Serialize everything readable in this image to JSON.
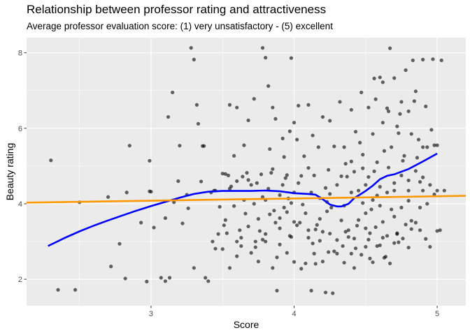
{
  "chart_data": {
    "type": "scatter",
    "title": "Relationship between professor rating and attractiveness",
    "subtitle": "Average professor evaluation score: (1) very unsatisfactory - (5) excellent",
    "xlabel": "Score",
    "ylabel": "Beauty rating",
    "xlim": [
      2.13,
      5.2
    ],
    "ylim": [
      1.3,
      8.4
    ],
    "x_ticks": [
      3,
      4,
      5
    ],
    "y_ticks": [
      2,
      4,
      6,
      8
    ],
    "grid": true,
    "colors": {
      "panel": "#ebebeb",
      "grid_major": "#ffffff",
      "points": "#000000",
      "smooth": "#0000ff",
      "linear_fit": "#ff9900"
    },
    "points": [
      [
        2.3,
        5.15
      ],
      [
        2.35,
        1.72
      ],
      [
        2.47,
        1.72
      ],
      [
        2.5,
        4.04
      ],
      [
        2.7,
        4.18
      ],
      [
        2.72,
        2.34
      ],
      [
        2.78,
        2.94
      ],
      [
        2.82,
        2.02
      ],
      [
        2.83,
        4.3
      ],
      [
        2.85,
        5.54
      ],
      [
        2.93,
        3.5
      ],
      [
        2.97,
        1.94
      ],
      [
        2.99,
        5.14
      ],
      [
        2.99,
        4.33
      ],
      [
        3.0,
        4.32
      ],
      [
        3.02,
        3.37
      ],
      [
        3.07,
        2.04
      ],
      [
        3.1,
        1.95
      ],
      [
        3.1,
        3.62
      ],
      [
        3.12,
        6.3
      ],
      [
        3.13,
        2.04
      ],
      [
        3.15,
        6.95
      ],
      [
        3.16,
        4.04
      ],
      [
        3.19,
        4.6
      ],
      [
        3.2,
        5.54
      ],
      [
        3.22,
        3.48
      ],
      [
        3.25,
        4.24
      ],
      [
        3.26,
        3.88
      ],
      [
        3.28,
        8.13
      ],
      [
        3.3,
        7.82
      ],
      [
        3.3,
        2.3
      ],
      [
        3.32,
        6.62
      ],
      [
        3.33,
        6.12
      ],
      [
        3.35,
        4.59
      ],
      [
        3.36,
        5.53
      ],
      [
        3.37,
        5.53
      ],
      [
        3.38,
        2.04
      ],
      [
        3.4,
        1.95
      ],
      [
        3.42,
        4.3
      ],
      [
        3.43,
        3.0
      ],
      [
        3.45,
        4.35
      ],
      [
        3.45,
        2.81
      ],
      [
        3.47,
        3.2
      ],
      [
        3.5,
        4.8
      ],
      [
        3.5,
        2.8
      ],
      [
        3.51,
        3.43
      ],
      [
        3.52,
        4.79
      ],
      [
        3.52,
        3.57
      ],
      [
        3.55,
        6.62
      ],
      [
        3.55,
        4.4
      ],
      [
        3.55,
        2.3
      ],
      [
        3.58,
        5.27
      ],
      [
        3.6,
        6.55
      ],
      [
        3.6,
        4.6
      ],
      [
        3.6,
        3.0
      ],
      [
        3.6,
        2.61
      ],
      [
        3.62,
        3.3
      ],
      [
        3.63,
        3.1
      ],
      [
        3.65,
        5.55
      ],
      [
        3.65,
        4.1
      ],
      [
        3.67,
        4.82
      ],
      [
        3.68,
        6.21
      ],
      [
        3.68,
        3.4
      ],
      [
        3.7,
        4.5
      ],
      [
        3.7,
        2.7
      ],
      [
        3.72,
        6.78
      ],
      [
        3.72,
        4.0
      ],
      [
        3.73,
        3.0
      ],
      [
        3.75,
        3.6
      ],
      [
        3.75,
        2.47
      ],
      [
        3.77,
        4.78
      ],
      [
        3.78,
        8.13
      ],
      [
        3.78,
        3.05
      ],
      [
        3.8,
        7.87
      ],
      [
        3.8,
        4.1
      ],
      [
        3.8,
        3.2
      ],
      [
        3.82,
        7.12
      ],
      [
        3.82,
        4.4
      ],
      [
        3.83,
        5.45
      ],
      [
        3.85,
        6.55
      ],
      [
        3.85,
        4.92
      ],
      [
        3.85,
        2.3
      ],
      [
        3.87,
        6.25
      ],
      [
        3.87,
        3.5
      ],
      [
        3.88,
        1.7
      ],
      [
        3.9,
        4.23
      ],
      [
        3.9,
        3.35
      ],
      [
        3.9,
        2.92
      ],
      [
        3.92,
        5.73
      ],
      [
        3.92,
        4.5
      ],
      [
        3.93,
        5.24
      ],
      [
        3.95,
        4.76
      ],
      [
        3.95,
        3.78
      ],
      [
        3.95,
        2.7
      ],
      [
        3.97,
        5.92
      ],
      [
        3.97,
        3.15
      ],
      [
        3.98,
        7.86
      ],
      [
        3.98,
        4.02
      ],
      [
        4.0,
        6.15
      ],
      [
        4.0,
        4.3
      ],
      [
        4.0,
        2.46
      ],
      [
        4.02,
        5.7
      ],
      [
        4.02,
        3.43
      ],
      [
        4.03,
        6.6
      ],
      [
        4.05,
        4.74
      ],
      [
        4.05,
        2.28
      ],
      [
        4.07,
        5.26
      ],
      [
        4.08,
        2.42
      ],
      [
        4.1,
        6.62
      ],
      [
        4.1,
        4.95
      ],
      [
        4.1,
        3.1
      ],
      [
        4.12,
        4.3
      ],
      [
        4.12,
        1.7
      ],
      [
        4.13,
        5.81
      ],
      [
        4.15,
        3.32
      ],
      [
        4.15,
        2.41
      ],
      [
        4.17,
        5.5
      ],
      [
        4.18,
        4.15
      ],
      [
        4.18,
        3.02
      ],
      [
        4.2,
        6.3
      ],
      [
        4.2,
        2.47
      ],
      [
        4.22,
        4.42
      ],
      [
        4.22,
        1.65
      ],
      [
        4.23,
        3.8
      ],
      [
        4.25,
        6.2
      ],
      [
        4.25,
        4.26
      ],
      [
        4.25,
        3.21
      ],
      [
        4.27,
        1.63
      ],
      [
        4.28,
        5.52
      ],
      [
        4.3,
        4.5
      ],
      [
        4.3,
        2.68
      ],
      [
        4.32,
        6.7
      ],
      [
        4.33,
        3.56
      ],
      [
        4.35,
        5.5
      ],
      [
        4.35,
        3.95
      ],
      [
        4.35,
        2.44
      ],
      [
        4.37,
        4.72
      ],
      [
        4.38,
        3.3
      ],
      [
        4.4,
        6.49
      ],
      [
        4.4,
        5.12
      ],
      [
        4.4,
        4.3
      ],
      [
        4.42,
        3.08
      ],
      [
        4.42,
        2.3
      ],
      [
        4.43,
        5.91
      ],
      [
        4.45,
        4.35
      ],
      [
        4.45,
        3.57
      ],
      [
        4.47,
        6.95
      ],
      [
        4.47,
        2.65
      ],
      [
        4.48,
        5.3
      ],
      [
        4.5,
        4.5
      ],
      [
        4.5,
        3.75
      ],
      [
        4.5,
        2.86
      ],
      [
        4.52,
        6.55
      ],
      [
        4.52,
        4.71
      ],
      [
        4.53,
        3.22
      ],
      [
        4.55,
        5.85
      ],
      [
        4.55,
        4.1
      ],
      [
        4.55,
        2.45
      ],
      [
        4.57,
        6.77
      ],
      [
        4.57,
        3.38
      ],
      [
        4.58,
        5.1
      ],
      [
        4.6,
        7.35
      ],
      [
        4.6,
        4.45
      ],
      [
        4.6,
        2.9
      ],
      [
        4.62,
        6.15
      ],
      [
        4.62,
        3.52
      ],
      [
        4.63,
        5.4
      ],
      [
        4.65,
        6.53
      ],
      [
        4.65,
        4.3
      ],
      [
        4.65,
        3.15
      ],
      [
        4.67,
        8.12
      ],
      [
        4.67,
        2.42
      ],
      [
        4.68,
        5.5
      ],
      [
        4.7,
        7.33
      ],
      [
        4.7,
        4.55
      ],
      [
        4.7,
        3.66
      ],
      [
        4.72,
        6.05
      ],
      [
        4.72,
        3.2
      ],
      [
        4.73,
        5.87
      ],
      [
        4.75,
        6.7
      ],
      [
        4.75,
        4.75
      ],
      [
        4.75,
        3.9
      ],
      [
        4.77,
        5.27
      ],
      [
        4.78,
        7.54
      ],
      [
        4.78,
        3.45
      ],
      [
        4.8,
        6.45
      ],
      [
        4.8,
        4.35
      ],
      [
        4.8,
        2.84
      ],
      [
        4.82,
        5.85
      ],
      [
        4.82,
        3.33
      ],
      [
        4.83,
        7.8
      ],
      [
        4.85,
        6.98
      ],
      [
        4.85,
        4.87
      ],
      [
        4.85,
        3.5
      ],
      [
        4.87,
        5.7
      ],
      [
        4.88,
        3.9
      ],
      [
        4.9,
        7.82
      ],
      [
        4.9,
        5.5
      ],
      [
        4.9,
        4.35
      ],
      [
        4.92,
        3.07
      ],
      [
        4.93,
        5.5
      ],
      [
        4.95,
        4.5
      ],
      [
        4.95,
        2.86
      ],
      [
        4.97,
        7.83
      ],
      [
        4.98,
        5.55
      ],
      [
        5.0,
        5.55
      ],
      [
        5.0,
        4.35
      ],
      [
        5.02,
        3.3
      ],
      [
        5.03,
        7.8
      ],
      [
        5.05,
        4.35
      ],
      [
        5.0,
        3.28
      ],
      [
        4.93,
        4.0
      ],
      [
        4.88,
        4.58
      ],
      [
        4.8,
        4.08
      ],
      [
        4.73,
        2.98
      ],
      [
        4.68,
        3.85
      ],
      [
        4.63,
        2.57
      ],
      [
        4.58,
        4.22
      ],
      [
        4.53,
        2.55
      ],
      [
        4.48,
        4.02
      ],
      [
        4.43,
        2.82
      ],
      [
        4.38,
        3.12
      ],
      [
        4.33,
        4.73
      ],
      [
        4.28,
        2.74
      ],
      [
        4.23,
        4.05
      ],
      [
        4.18,
        3.6
      ],
      [
        4.13,
        2.95
      ],
      [
        4.08,
        3.75
      ],
      [
        4.03,
        4.55
      ],
      [
        3.98,
        3.12
      ],
      [
        3.93,
        3.9
      ],
      [
        3.88,
        2.58
      ],
      [
        3.83,
        3.72
      ],
      [
        3.78,
        4.18
      ],
      [
        3.73,
        2.85
      ],
      [
        3.68,
        4.63
      ],
      [
        3.63,
        2.88
      ],
      [
        3.58,
        3.94
      ],
      [
        3.53,
        3.22
      ],
      [
        3.48,
        3.92
      ],
      [
        4.52,
        3.05
      ],
      [
        4.58,
        2.88
      ],
      [
        4.64,
        2.6
      ],
      [
        4.7,
        2.96
      ],
      [
        4.76,
        3.08
      ],
      [
        4.44,
        3.42
      ],
      [
        4.36,
        3.26
      ],
      [
        4.26,
        3.9
      ],
      [
        4.16,
        3.44
      ],
      [
        4.06,
        3.98
      ],
      [
        3.96,
        4.14
      ],
      [
        3.86,
        3.82
      ],
      [
        3.76,
        3.28
      ],
      [
        3.66,
        3.74
      ],
      [
        3.56,
        4.46
      ],
      [
        4.56,
        4.86
      ],
      [
        4.66,
        4.96
      ],
      [
        4.76,
        5.14
      ],
      [
        4.86,
        5.22
      ],
      [
        4.96,
        5.96
      ],
      [
        4.46,
        5.62
      ],
      [
        4.36,
        5.06
      ],
      [
        4.56,
        7.32
      ],
      [
        4.62,
        7.22
      ],
      [
        4.66,
        6.45
      ],
      [
        4.74,
        6.38
      ],
      [
        4.84,
        6.72
      ],
      [
        4.92,
        6.58
      ],
      [
        4.54,
        3.85
      ],
      [
        4.6,
        3.95
      ],
      [
        4.7,
        4.35
      ],
      [
        4.8,
        4.62
      ],
      [
        4.9,
        4.7
      ],
      [
        4.42,
        4.85
      ],
      [
        4.48,
        4.94
      ],
      [
        4.24,
        4.9
      ],
      [
        4.14,
        4.75
      ],
      [
        4.04,
        3.5
      ],
      [
        3.94,
        4.68
      ],
      [
        3.84,
        4.82
      ],
      [
        3.74,
        4.55
      ],
      [
        3.64,
        4.72
      ],
      [
        3.54,
        4.75
      ],
      [
        3.44,
        4.35
      ],
      [
        4.5,
        3.35
      ],
      [
        4.62,
        3.1
      ],
      [
        4.72,
        3.22
      ],
      [
        4.82,
        3.55
      ],
      [
        4.88,
        3.3
      ],
      [
        4.98,
        4.25
      ],
      [
        4.4,
        2.68
      ],
      [
        4.34,
        2.88
      ],
      [
        4.24,
        2.72
      ],
      [
        4.14,
        2.68
      ],
      [
        4.3,
        3.04
      ],
      [
        4.2,
        3.26
      ],
      [
        4.1,
        3.3
      ],
      [
        4.0,
        3.52
      ],
      [
        3.9,
        3.62
      ],
      [
        3.8,
        3.0
      ]
    ],
    "smooth_line": [
      [
        2.28,
        2.88
      ],
      [
        2.4,
        3.1
      ],
      [
        2.5,
        3.27
      ],
      [
        2.6,
        3.42
      ],
      [
        2.7,
        3.56
      ],
      [
        2.8,
        3.69
      ],
      [
        2.9,
        3.82
      ],
      [
        3.0,
        3.94
      ],
      [
        3.1,
        4.05
      ],
      [
        3.2,
        4.16
      ],
      [
        3.3,
        4.26
      ],
      [
        3.4,
        4.32
      ],
      [
        3.5,
        4.34
      ],
      [
        3.6,
        4.34
      ],
      [
        3.7,
        4.34
      ],
      [
        3.8,
        4.35
      ],
      [
        3.9,
        4.33
      ],
      [
        4.0,
        4.28
      ],
      [
        4.1,
        4.26
      ],
      [
        4.15,
        4.24
      ],
      [
        4.2,
        4.12
      ],
      [
        4.25,
        3.98
      ],
      [
        4.3,
        3.93
      ],
      [
        4.33,
        3.93
      ],
      [
        4.38,
        4.0
      ],
      [
        4.42,
        4.15
      ],
      [
        4.45,
        4.22
      ],
      [
        4.5,
        4.34
      ],
      [
        4.55,
        4.48
      ],
      [
        4.6,
        4.65
      ],
      [
        4.65,
        4.74
      ],
      [
        4.7,
        4.78
      ],
      [
        4.8,
        4.92
      ],
      [
        4.9,
        5.12
      ],
      [
        5.0,
        5.33
      ]
    ],
    "linear_fit": [
      [
        2.13,
        4.03
      ],
      [
        5.2,
        4.21
      ]
    ]
  }
}
